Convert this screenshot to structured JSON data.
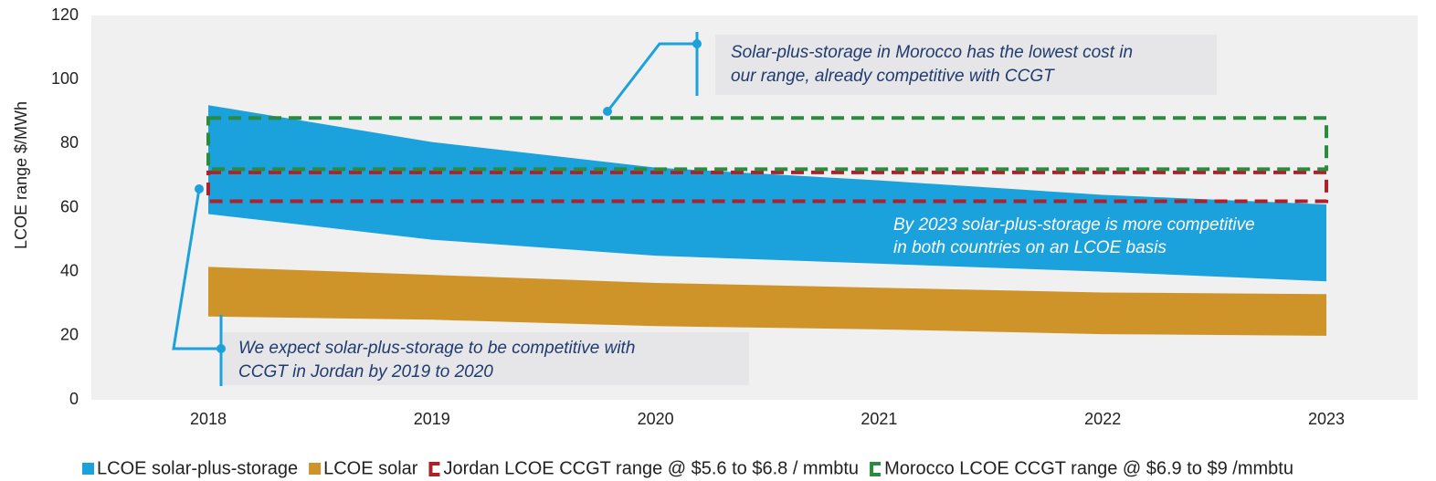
{
  "chart_data": {
    "type": "range_area",
    "y_label": "LCOE range $/MWh",
    "categories": [
      "2018",
      "2019",
      "2020",
      "2021",
      "2022",
      "2023"
    ],
    "ylim": [
      0,
      120
    ],
    "yticks": [
      0,
      20,
      40,
      60,
      80,
      100,
      120
    ],
    "series": [
      {
        "name": "LCOE solar-plus-storage",
        "color": "#1ba1dc",
        "style": "fill",
        "low": [
          58,
          50,
          45,
          42.5,
          40,
          37
        ],
        "high": [
          92,
          80.5,
          72.5,
          68.5,
          64,
          61
        ]
      },
      {
        "name": "LCOE solar",
        "color": "#cf9429",
        "style": "fill",
        "low": [
          26,
          25,
          23,
          22,
          20.5,
          20
        ],
        "high": [
          41.5,
          39,
          36.5,
          35,
          33.5,
          33
        ]
      },
      {
        "name": "Jordan LCOE CCGT range @ $5.6 to $6.8 / mmbtu",
        "color": "#b0202a",
        "style": "dashed",
        "low": 62,
        "high": 71
      },
      {
        "name": "Morocco LCOE CCGT range @ $6.9 to $9 /mmbtu",
        "color": "#2a8a3e",
        "style": "dashed",
        "low": 72,
        "high": 88
      }
    ],
    "annotations": [
      {
        "lines": [
          "Solar-plus-storage in Morocco has the lowest cost in",
          "our range, already competitive with CCGT"
        ]
      },
      {
        "lines": [
          "We expect solar-plus-storage to be competitive with",
          "CCGT in Jordan by 2019 to 2020"
        ]
      },
      {
        "lines": [
          "By  2023  solar-plus-storage  is  more  competitive",
          "in both countries on an LCOE basis"
        ]
      }
    ]
  }
}
